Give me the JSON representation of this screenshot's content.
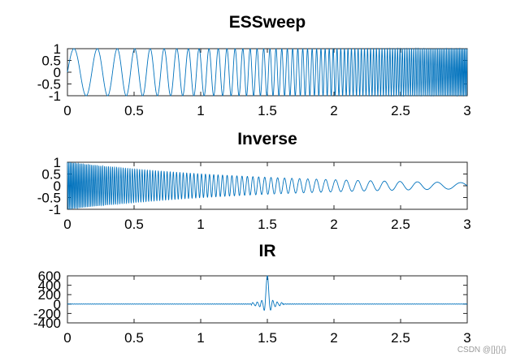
{
  "chart_data": [
    {
      "type": "line",
      "title": "ESSweep",
      "xlabel": "",
      "ylabel": "",
      "xlim": [
        0,
        3
      ],
      "ylim": [
        -1,
        1
      ],
      "x_ticks": [
        "0",
        "0.5",
        "1",
        "1.5",
        "2",
        "2.5",
        "3"
      ],
      "y_ticks": [
        "-1",
        "-0.5",
        "0",
        "0.5",
        "1"
      ],
      "grid": false,
      "series": [
        {
          "kind": "exponential-sine-sweep",
          "amplitude": 1,
          "start_cycles_per_unit": 5,
          "end_cycles_per_unit": 90
        }
      ]
    },
    {
      "type": "line",
      "title": "Inverse",
      "xlabel": "",
      "ylabel": "",
      "xlim": [
        0,
        3
      ],
      "ylim": [
        -1,
        1
      ],
      "x_ticks": [
        "0",
        "0.5",
        "1",
        "1.5",
        "2",
        "2.5",
        "3"
      ],
      "y_ticks": [
        "-1",
        "-0.5",
        "0",
        "0.5",
        "1"
      ],
      "grid": false,
      "series": [
        {
          "kind": "inverse-sweep",
          "start_amplitude": 1,
          "end_amplitude": 0.13
        }
      ]
    },
    {
      "type": "line",
      "title": "IR",
      "xlabel": "",
      "ylabel": "",
      "xlim": [
        0,
        3
      ],
      "ylim": [
        -400,
        600
      ],
      "x_ticks": [
        "0",
        "0.5",
        "1",
        "1.5",
        "2",
        "2.5",
        "3"
      ],
      "y_ticks": [
        "-400",
        "-200",
        "0",
        "200",
        "400",
        "600"
      ],
      "grid": false,
      "series": [
        {
          "kind": "impulse",
          "peak_x": 1.5,
          "peak_y": 600,
          "min_y": -200
        }
      ]
    }
  ],
  "colors": {
    "line": "#0072bd",
    "axes": "#262626"
  },
  "watermark": "CSDN @[]{}{}"
}
